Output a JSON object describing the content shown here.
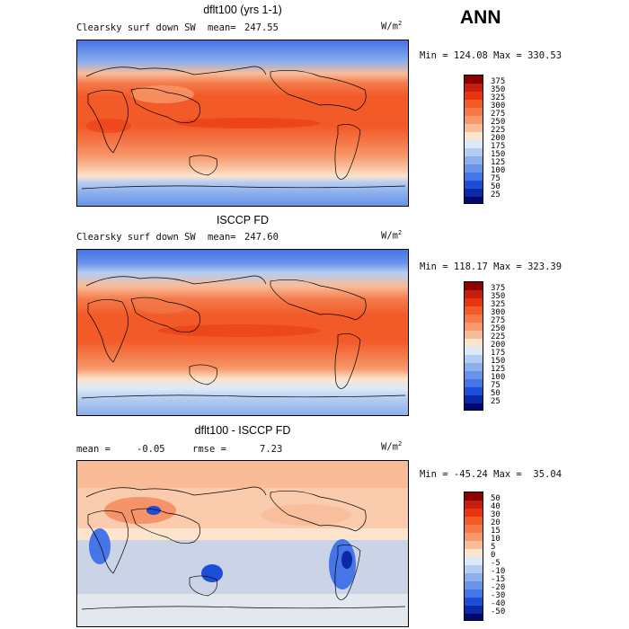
{
  "header": {
    "season": "ANN"
  },
  "panels": [
    {
      "title": "dflt100 (yrs 1-1)",
      "variable": "Clearsky surf down SW",
      "mean_label": "mean=",
      "mean_value": "247.55",
      "units_base": "W/m",
      "units_exp": "2",
      "minmax": "Min = 124.08 Max = 330.53",
      "cb_labels": [
        "375",
        "350",
        "325",
        "300",
        "275",
        "250",
        "225",
        "200",
        "175",
        "150",
        "125",
        "100",
        "75",
        "50",
        "25"
      ],
      "cb_colors": [
        "#8b0000",
        "#c41e0e",
        "#e8340f",
        "#f25a28",
        "#f47a4a",
        "#f7996c",
        "#f9bc98",
        "#fde4cc",
        "#dce9f7",
        "#b5cdf2",
        "#8cb0ec",
        "#6993ea",
        "#4575e6",
        "#1d4ed8",
        "#0a28a8",
        "#000a6e"
      ]
    },
    {
      "title": "ISCCP FD",
      "variable": "Clearsky surf down SW",
      "mean_label": "mean=",
      "mean_value": "247.60",
      "units_base": "W/m",
      "units_exp": "2",
      "minmax": "Min = 118.17 Max = 323.39",
      "cb_labels": [
        "375",
        "350",
        "325",
        "300",
        "275",
        "250",
        "225",
        "200",
        "175",
        "150",
        "125",
        "100",
        "75",
        "50",
        "25"
      ],
      "cb_colors": [
        "#8b0000",
        "#c41e0e",
        "#e8340f",
        "#f25a28",
        "#f47a4a",
        "#f7996c",
        "#f9bc98",
        "#fde4cc",
        "#dce9f7",
        "#b5cdf2",
        "#8cb0ec",
        "#6993ea",
        "#4575e6",
        "#1d4ed8",
        "#0a28a8",
        "#000a6e"
      ]
    },
    {
      "title": "dflt100 - ISCCP FD",
      "mean_label": "mean =",
      "mean_value": "-0.05",
      "rmse_label": "rmse =",
      "rmse_value": "7.23",
      "units_base": "W/m",
      "units_exp": "2",
      "minmax": "Min = -45.24 Max =  35.04",
      "cb_labels": [
        "50",
        "40",
        "30",
        "20",
        "15",
        "10",
        "5",
        "0",
        "-5",
        "-10",
        "-15",
        "-20",
        "-30",
        "-40",
        "-50"
      ],
      "cb_colors": [
        "#8b0000",
        "#c41e0e",
        "#e8340f",
        "#f25a28",
        "#f47a4a",
        "#f7996c",
        "#f9bc98",
        "#fde4cc",
        "#dce9f7",
        "#b5cdf2",
        "#8cb0ec",
        "#6993ea",
        "#4575e6",
        "#1d4ed8",
        "#0a28a8",
        "#000a6e"
      ]
    }
  ],
  "chart_data": [
    {
      "type": "heatmap",
      "title": "dflt100 (yrs 1-1)",
      "subtitle": "Clearsky surf down SW",
      "mean": 247.55,
      "min": 124.08,
      "max": 330.53,
      "units": "W/m2",
      "contour_levels": [
        25,
        50,
        75,
        100,
        125,
        150,
        175,
        200,
        225,
        250,
        275,
        300,
        325,
        350,
        375
      ]
    },
    {
      "type": "heatmap",
      "title": "ISCCP FD",
      "subtitle": "Clearsky surf down SW",
      "mean": 247.6,
      "min": 118.17,
      "max": 323.39,
      "units": "W/m2",
      "contour_levels": [
        25,
        50,
        75,
        100,
        125,
        150,
        175,
        200,
        225,
        250,
        275,
        300,
        325,
        350,
        375
      ]
    },
    {
      "type": "heatmap",
      "title": "dflt100 - ISCCP FD",
      "mean": -0.05,
      "rmse": 7.23,
      "min": -45.24,
      "max": 35.04,
      "units": "W/m2",
      "contour_levels": [
        -50,
        -40,
        -30,
        -20,
        -15,
        -10,
        -5,
        0,
        5,
        10,
        15,
        20,
        30,
        40,
        50
      ]
    }
  ]
}
